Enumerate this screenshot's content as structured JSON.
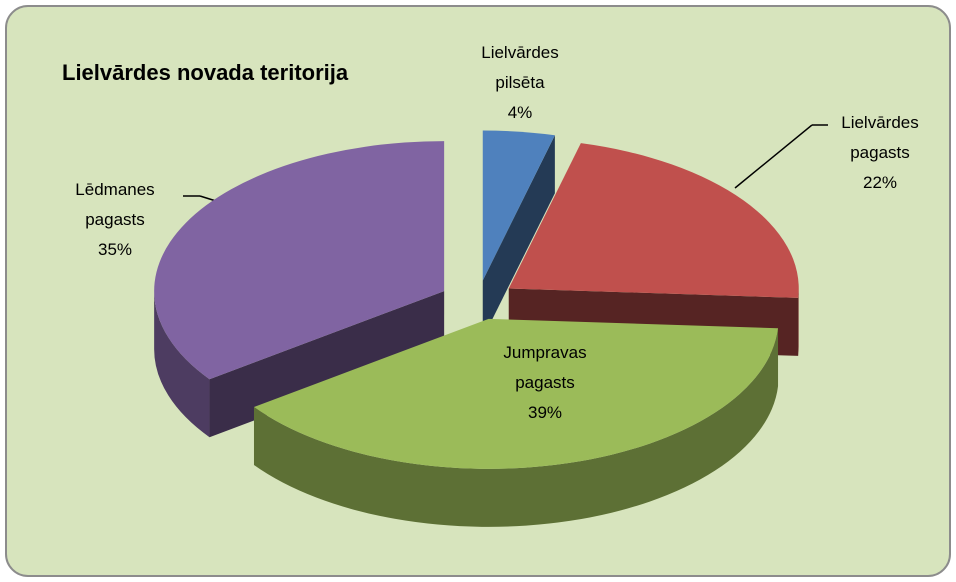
{
  "chart_data": {
    "type": "pie3d",
    "title": "Lielvārdes novada teritorija",
    "categories": [
      "Lielvārdes pilsēta",
      "Lielvārdes pagasts",
      "Jumpravas pagasts",
      "Lēdmanes pagasts"
    ],
    "values": [
      4,
      22,
      39,
      35
    ],
    "value_labels": [
      "4%",
      "22%",
      "39%",
      "35%"
    ],
    "colors": [
      "#4f81bd",
      "#c0504d",
      "#9bbb59",
      "#8064a2"
    ]
  }
}
